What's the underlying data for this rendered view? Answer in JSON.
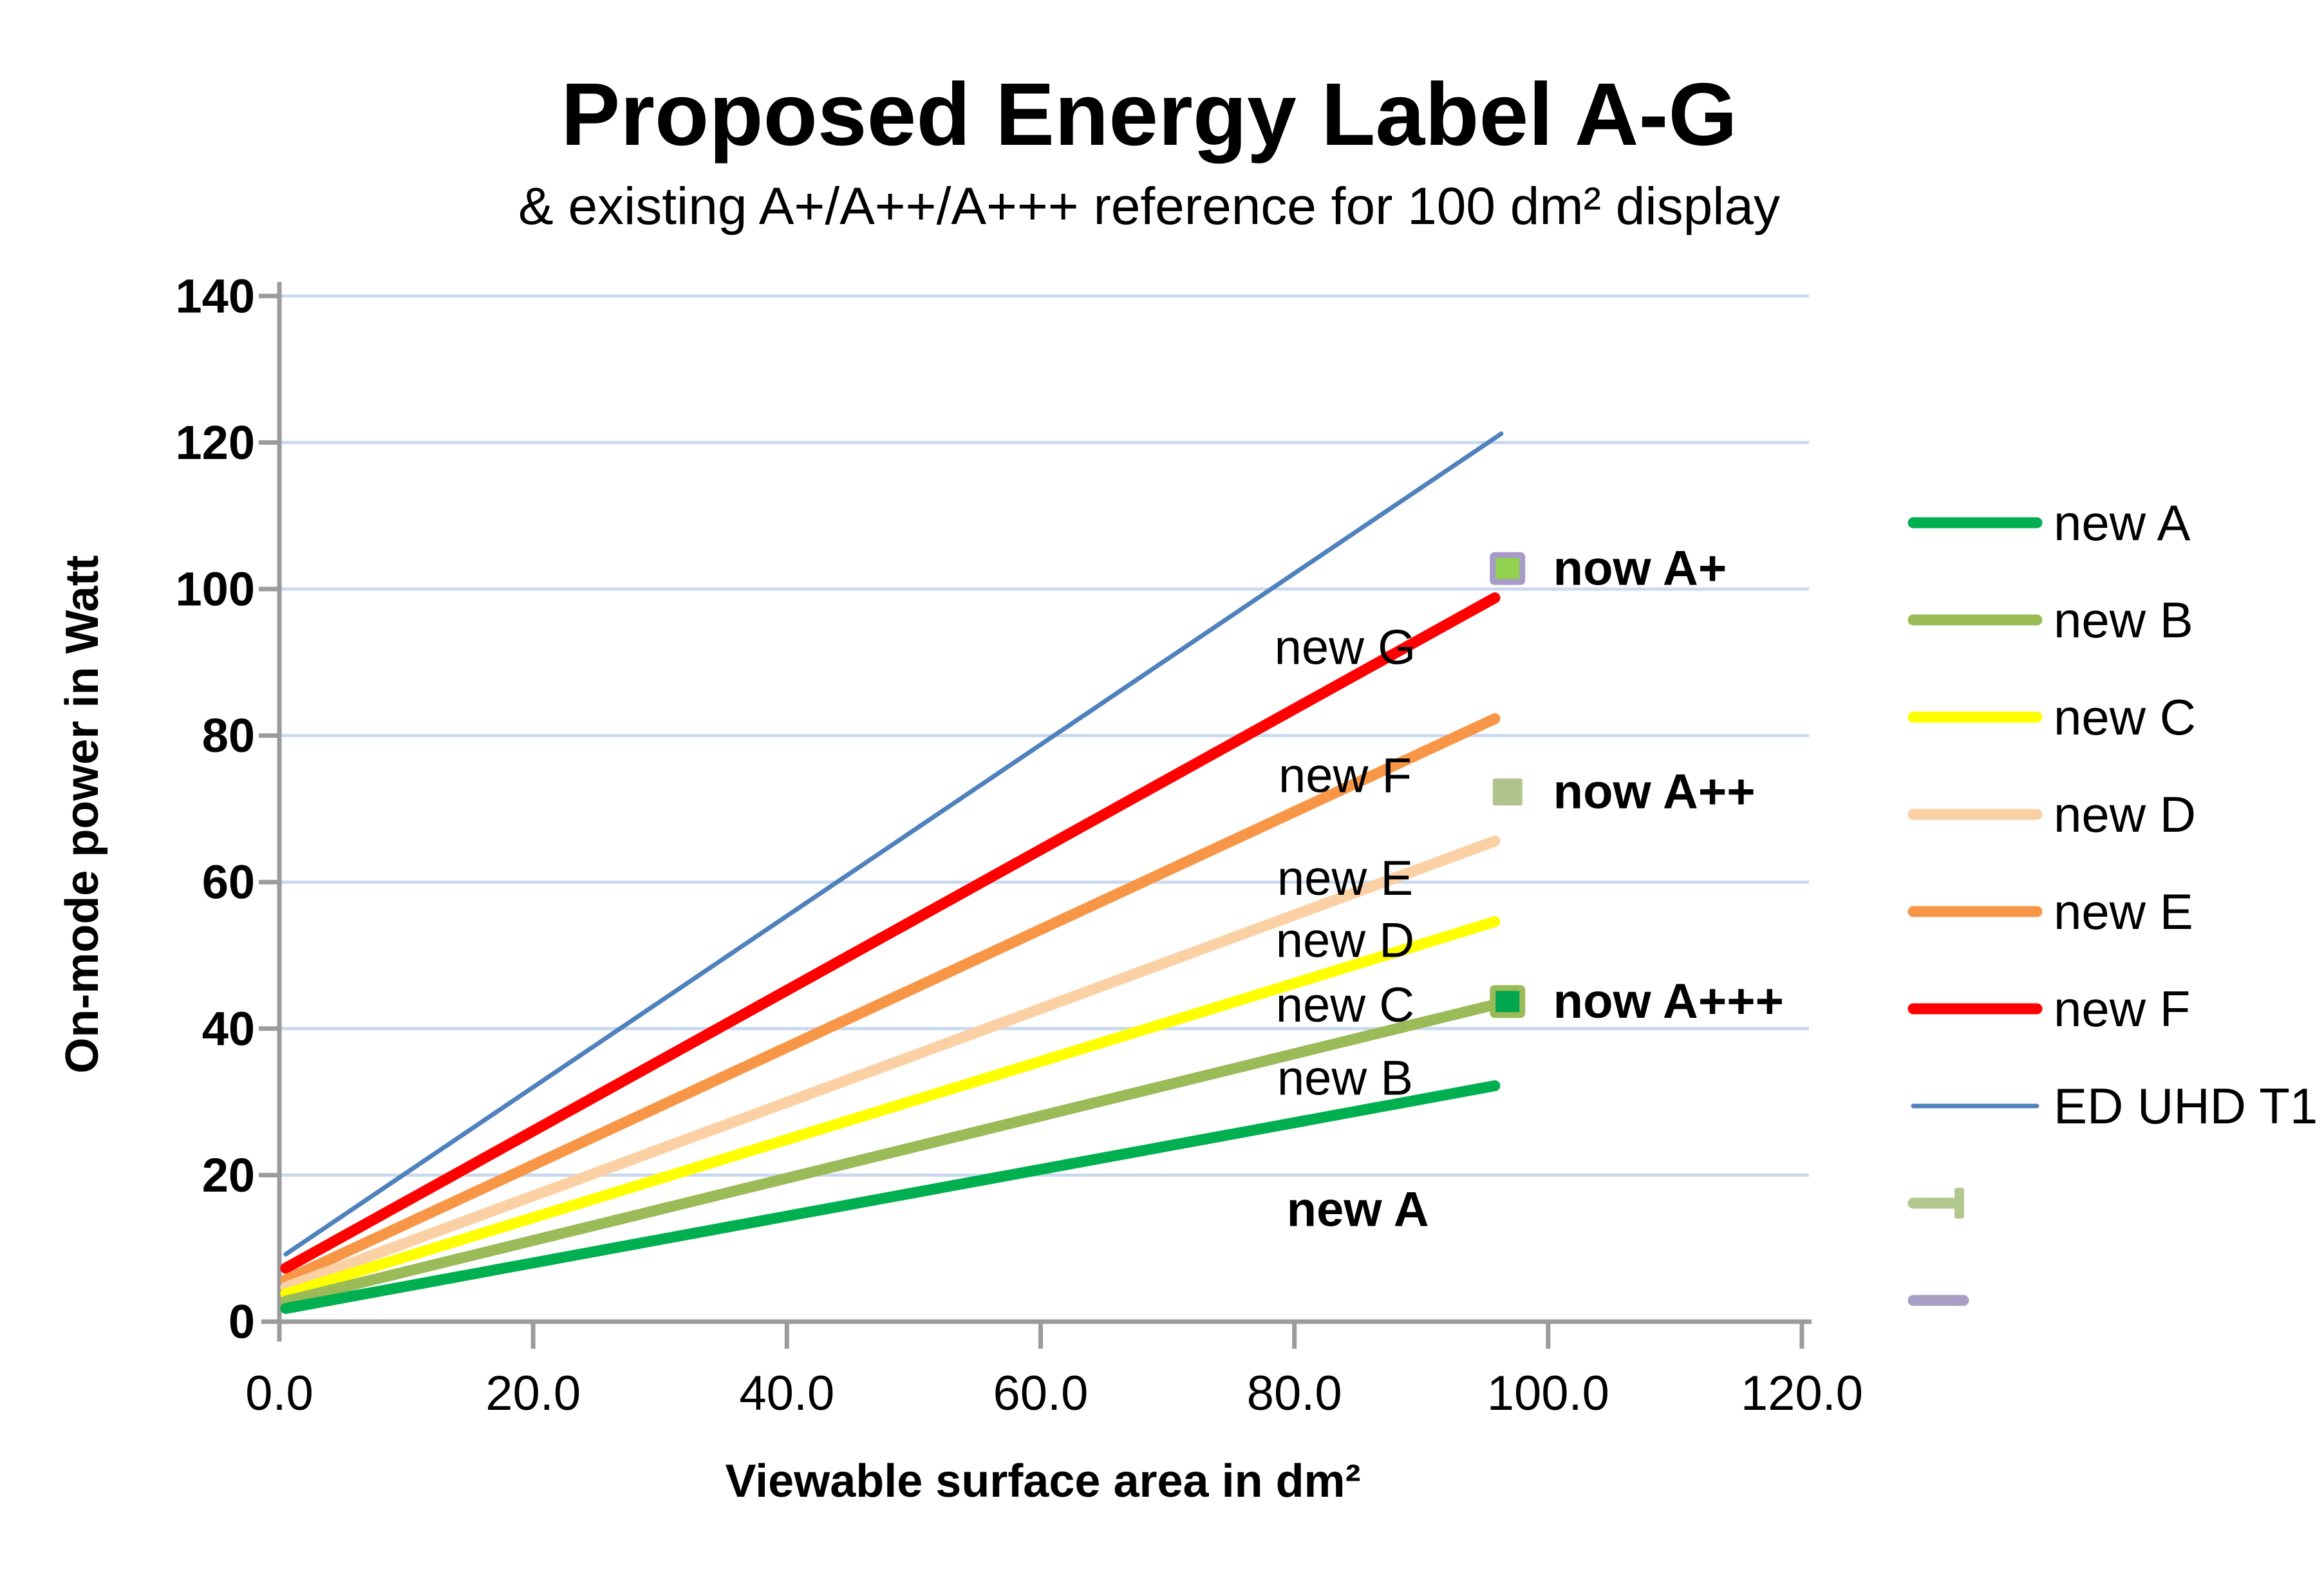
{
  "title": "Proposed Energy Label A-G",
  "subtitle": "& existing A+/A++/A+++ reference for 100 dm² display",
  "chart_data": {
    "type": "line",
    "title": "Proposed Energy Label A-G",
    "subtitle": "& existing A+/A++/A+++ reference for 100 dm² display",
    "grid": true,
    "legend_position": "right",
    "style": {
      "grid_color": "#C9DAF0",
      "axis_color": "#9B9B9B",
      "text_color": "#000000",
      "background": "#FFFFFF"
    },
    "axes": {
      "x": {
        "label": "Viewable surface area in dm²",
        "min": 0,
        "max": 120
      },
      "y": {
        "label": "On-mode power in Watt",
        "min": 0,
        "max": 140
      }
    },
    "x_ticks": [
      {
        "v": 0,
        "label": "0.0"
      },
      {
        "v": 20,
        "label": "20.0"
      },
      {
        "v": 40,
        "label": "40.0"
      },
      {
        "v": 60,
        "label": "60.0"
      },
      {
        "v": 80,
        "label": "80.0"
      },
      {
        "v": 100,
        "label": "100.0"
      },
      {
        "v": 120,
        "label": "120.0"
      }
    ],
    "y_ticks": [
      {
        "v": 0,
        "label": "0"
      },
      {
        "v": 20,
        "label": "20"
      },
      {
        "v": 40,
        "label": "40"
      },
      {
        "v": 60,
        "label": "60"
      },
      {
        "v": 80,
        "label": "80"
      },
      {
        "v": 100,
        "label": "100"
      },
      {
        "v": 120,
        "label": "120"
      },
      {
        "v": 140,
        "label": "140"
      }
    ],
    "series": [
      {
        "name": "ED UHD T1",
        "color": "#4F81BD",
        "width": 7,
        "points": [
          [
            0.5,
            9.2
          ],
          [
            96.3,
            121.2
          ]
        ]
      },
      {
        "name": "new F",
        "color": "#FF0000",
        "width": 17,
        "points": [
          [
            0.5,
            7.3
          ],
          [
            95.8,
            98.8
          ]
        ]
      },
      {
        "name": "new E",
        "color": "#F79646",
        "width": 17,
        "points": [
          [
            0.5,
            5.7
          ],
          [
            95.8,
            82.3
          ]
        ]
      },
      {
        "name": "new D",
        "color": "#FBD0A4",
        "width": 17,
        "points": [
          [
            0.5,
            4.7
          ],
          [
            95.8,
            65.6
          ]
        ]
      },
      {
        "name": "new C",
        "color": "#FFFF00",
        "width": 17,
        "points": [
          [
            0.5,
            3.8
          ],
          [
            95.8,
            54.6
          ]
        ]
      },
      {
        "name": "new B",
        "color": "#9BBB59",
        "width": 17,
        "points": [
          [
            0.5,
            2.8
          ],
          [
            96.8,
            43.7
          ]
        ]
      },
      {
        "name": "new A",
        "color": "#00B050",
        "width": 17,
        "points": [
          [
            0.5,
            1.8
          ],
          [
            95.8,
            32.2
          ]
        ]
      }
    ],
    "markers": [
      {
        "name": "now A+",
        "x": 96.8,
        "y": 102.8,
        "fill": "#92D050",
        "stroke": "#A99BC9"
      },
      {
        "name": "now A++",
        "x": 96.8,
        "y": 72.3,
        "fill": "#AFC48C",
        "stroke": ""
      },
      {
        "name": "now A+++",
        "x": 96.8,
        "y": 43.7,
        "fill": "#00A550",
        "stroke": "#9BBB59"
      }
    ],
    "annotations": [
      {
        "text": "new G",
        "x": 84,
        "y": 92,
        "bold": false,
        "anchor": "middle"
      },
      {
        "text": "new F",
        "x": 84,
        "y": 74.5,
        "bold": false,
        "anchor": "middle"
      },
      {
        "text": "new E",
        "x": 84,
        "y": 60.5,
        "bold": false,
        "anchor": "middle"
      },
      {
        "text": "new D",
        "x": 84,
        "y": 52,
        "bold": false,
        "anchor": "middle"
      },
      {
        "text": "new C",
        "x": 84,
        "y": 43.2,
        "bold": false,
        "anchor": "middle"
      },
      {
        "text": "new B",
        "x": 84,
        "y": 33.2,
        "bold": false,
        "anchor": "middle"
      },
      {
        "text": "new A",
        "x": 85,
        "y": 15.3,
        "bold": true,
        "anchor": "middle"
      },
      {
        "text": "now A+",
        "x": 100.4,
        "y": 102.8,
        "bold": true,
        "anchor": "start"
      },
      {
        "text": "now A++",
        "x": 100.4,
        "y": 72.3,
        "bold": true,
        "anchor": "start"
      },
      {
        "text": "now A+++",
        "x": 100.4,
        "y": 43.7,
        "bold": true,
        "anchor": "start"
      }
    ],
    "legend": {
      "items": [
        {
          "label": "new A",
          "color": "#00B050",
          "kind": "line"
        },
        {
          "label": "new B",
          "color": "#9BBB59",
          "kind": "line"
        },
        {
          "label": "new C",
          "color": "#FFFF00",
          "kind": "line"
        },
        {
          "label": "new D",
          "color": "#FBD0A4",
          "kind": "line"
        },
        {
          "label": "new E",
          "color": "#F79646",
          "kind": "line"
        },
        {
          "label": "new F",
          "color": "#FF0000",
          "kind": "line"
        },
        {
          "label": "ED UHD T1",
          "color": "#4F81BD",
          "kind": "thin-line"
        },
        {
          "label": "",
          "color": "#B3C88F",
          "kind": "tack-marker"
        },
        {
          "label": "",
          "color": "#A89FC4",
          "kind": "dash-marker"
        }
      ]
    }
  }
}
